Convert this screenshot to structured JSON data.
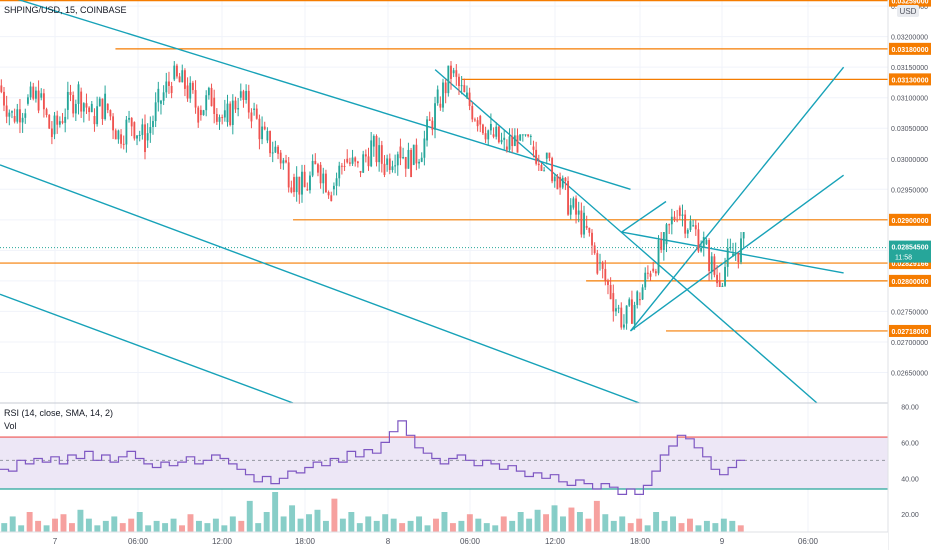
{
  "header": {
    "symbol": "SHPING/USD, 15, COINBASE",
    "currency_badge": "USD"
  },
  "rsi_legend": "RSI (14, close, SMA, 14, 2)",
  "vol_legend": "Vol",
  "colors": {
    "up": "#26a69a",
    "down": "#ef5350",
    "level_line": "#f57c00",
    "trend_line": "#17a2b8",
    "rsi_line": "#7e57c2",
    "rsi_band_fill": "#ede7f6",
    "rsi_upper": "#ef5350",
    "rsi_lower": "#26a69a"
  },
  "chart_data": [
    {
      "type": "candlestick",
      "title": "SHPING/USD, 15, COINBASE",
      "ylim": [
        0.026,
        0.0326
      ],
      "x_tick_labels": [
        "7",
        "06:00",
        "12:00",
        "18:00",
        "8",
        "06:00",
        "12:00",
        "18:00",
        "9",
        "06:00"
      ],
      "y_tick_labels": [
        "0.02650000",
        "0.02700000",
        "0.02750000",
        "0.02800000",
        "0.02850000",
        "0.02900000",
        "0.02950000",
        "0.03000000",
        "0.03050000",
        "0.03100000",
        "0.03150000",
        "0.03200000",
        "0.03250000"
      ],
      "y_ticks": [
        0.0265,
        0.027,
        0.0275,
        0.028,
        0.0285,
        0.029,
        0.0295,
        0.03,
        0.0305,
        0.031,
        0.0315,
        0.032,
        0.0325
      ],
      "price_labels": [
        {
          "text": "0.03259000",
          "value": 0.03259,
          "color": "#f57c00"
        },
        {
          "text": "0.03180000",
          "value": 0.0318,
          "color": "#f57c00"
        },
        {
          "text": "0.03130000",
          "value": 0.0313,
          "color": "#f57c00"
        },
        {
          "text": "0.02900000",
          "value": 0.029,
          "color": "#f57c00"
        },
        {
          "text": "0.02829166",
          "value": 0.02829166,
          "color": "#f57c00"
        },
        {
          "text": "0.02800000",
          "value": 0.028,
          "color": "#f57c00"
        },
        {
          "text": "0.02718000",
          "value": 0.02718,
          "color": "#f57c00"
        }
      ],
      "last_price": {
        "text": "0.02854500",
        "value": 0.028545,
        "countdown": "11:58"
      },
      "horizontal_levels": [
        {
          "value": 0.03259,
          "from_x": 0.0
        },
        {
          "value": 0.0318,
          "from_x": 0.13
        },
        {
          "value": 0.0313,
          "from_x": 0.52
        },
        {
          "value": 0.029,
          "from_x": 0.33
        },
        {
          "value": 0.02829166,
          "from_x": 0.0
        },
        {
          "value": 0.028,
          "from_x": 0.66
        },
        {
          "value": 0.02718,
          "from_x": 0.75
        }
      ],
      "series": [
        {
          "name": "",
          "segments": [
            {
              "start": 0.0312,
              "end": 0.0307,
              "hi": 0.0314,
              "lo": 0.0302
            },
            {
              "start": 0.0307,
              "end": 0.0309,
              "hi": 0.0313,
              "lo": 0.0303
            },
            {
              "start": 0.0309,
              "end": 0.031,
              "hi": 0.0314,
              "lo": 0.0305
            },
            {
              "start": 0.031,
              "end": 0.0304,
              "hi": 0.0312,
              "lo": 0.0301
            },
            {
              "start": 0.0304,
              "end": 0.0308,
              "hi": 0.0313,
              "lo": 0.0301
            },
            {
              "start": 0.0308,
              "end": 0.0311,
              "hi": 0.0316,
              "lo": 0.0305
            },
            {
              "start": 0.0311,
              "end": 0.0307,
              "hi": 0.0315,
              "lo": 0.0304
            },
            {
              "start": 0.0307,
              "end": 0.0309,
              "hi": 0.0312,
              "lo": 0.0304
            },
            {
              "start": 0.0309,
              "end": 0.0304,
              "hi": 0.0311,
              "lo": 0.0301
            },
            {
              "start": 0.0304,
              "end": 0.0306,
              "hi": 0.031,
              "lo": 0.0301
            },
            {
              "start": 0.0306,
              "end": 0.0303,
              "hi": 0.0308,
              "lo": 0.0299
            },
            {
              "start": 0.0303,
              "end": 0.0309,
              "hi": 0.0313,
              "lo": 0.0301
            },
            {
              "start": 0.0309,
              "end": 0.0313,
              "hi": 0.0318,
              "lo": 0.0306
            },
            {
              "start": 0.0313,
              "end": 0.0312,
              "hi": 0.0316,
              "lo": 0.031
            },
            {
              "start": 0.0312,
              "end": 0.0308,
              "hi": 0.0315,
              "lo": 0.0305
            },
            {
              "start": 0.0308,
              "end": 0.031,
              "hi": 0.0313,
              "lo": 0.0306
            },
            {
              "start": 0.031,
              "end": 0.0306,
              "hi": 0.0312,
              "lo": 0.0303
            },
            {
              "start": 0.0306,
              "end": 0.031,
              "hi": 0.0313,
              "lo": 0.0304
            },
            {
              "start": 0.031,
              "end": 0.0308,
              "hi": 0.0313,
              "lo": 0.0305
            },
            {
              "start": 0.0308,
              "end": 0.0303,
              "hi": 0.031,
              "lo": 0.03
            },
            {
              "start": 0.0303,
              "end": 0.0301,
              "hi": 0.0306,
              "lo": 0.0298
            },
            {
              "start": 0.0301,
              "end": 0.0297,
              "hi": 0.0303,
              "lo": 0.0293
            },
            {
              "start": 0.0297,
              "end": 0.0295,
              "hi": 0.0299,
              "lo": 0.0292
            },
            {
              "start": 0.0295,
              "end": 0.0299,
              "hi": 0.0301,
              "lo": 0.0293
            },
            {
              "start": 0.0299,
              "end": 0.0295,
              "hi": 0.0301,
              "lo": 0.0293
            },
            {
              "start": 0.0295,
              "end": 0.03,
              "hi": 0.0304,
              "lo": 0.0294
            },
            {
              "start": 0.03,
              "end": 0.0298,
              "hi": 0.0302,
              "lo": 0.0296
            },
            {
              "start": 0.0298,
              "end": 0.0302,
              "hi": 0.0305,
              "lo": 0.0297
            },
            {
              "start": 0.0302,
              "end": 0.0299,
              "hi": 0.0304,
              "lo": 0.0297
            },
            {
              "start": 0.0299,
              "end": 0.0302,
              "hi": 0.0304,
              "lo": 0.0297
            },
            {
              "start": 0.0302,
              "end": 0.0299,
              "hi": 0.0304,
              "lo": 0.0297
            },
            {
              "start": 0.0299,
              "end": 0.0303,
              "hi": 0.0305,
              "lo": 0.0297
            },
            {
              "start": 0.0303,
              "end": 0.0309,
              "hi": 0.0312,
              "lo": 0.0302
            },
            {
              "start": 0.0309,
              "end": 0.0314,
              "hi": 0.0316,
              "lo": 0.0307
            },
            {
              "start": 0.0314,
              "end": 0.031,
              "hi": 0.0316,
              "lo": 0.0307
            },
            {
              "start": 0.031,
              "end": 0.0307,
              "hi": 0.0312,
              "lo": 0.0304
            },
            {
              "start": 0.0307,
              "end": 0.0304,
              "hi": 0.0309,
              "lo": 0.0302
            },
            {
              "start": 0.0304,
              "end": 0.0302,
              "hi": 0.0306,
              "lo": 0.0301
            },
            {
              "start": 0.0302,
              "end": 0.0303,
              "hi": 0.0305,
              "lo": 0.0301
            },
            {
              "start": 0.0303,
              "end": 0.0302,
              "hi": 0.0304,
              "lo": 0.0301
            },
            {
              "start": 0.0302,
              "end": 0.03,
              "hi": 0.0303,
              "lo": 0.0298
            },
            {
              "start": 0.03,
              "end": 0.0297,
              "hi": 0.0301,
              "lo": 0.0295
            },
            {
              "start": 0.0297,
              "end": 0.0292,
              "hi": 0.0298,
              "lo": 0.029
            },
            {
              "start": 0.0292,
              "end": 0.0289,
              "hi": 0.0294,
              "lo": 0.0287
            },
            {
              "start": 0.0289,
              "end": 0.0283,
              "hi": 0.0291,
              "lo": 0.0281
            },
            {
              "start": 0.0283,
              "end": 0.0278,
              "hi": 0.0285,
              "lo": 0.0277
            },
            {
              "start": 0.0278,
              "end": 0.0273,
              "hi": 0.028,
              "lo": 0.0272
            },
            {
              "start": 0.0273,
              "end": 0.0277,
              "hi": 0.0279,
              "lo": 0.0272
            },
            {
              "start": 0.0277,
              "end": 0.0282,
              "hi": 0.0284,
              "lo": 0.0276
            },
            {
              "start": 0.0282,
              "end": 0.0286,
              "hi": 0.0288,
              "lo": 0.028
            },
            {
              "start": 0.0286,
              "end": 0.0292,
              "hi": 0.0294,
              "lo": 0.0284
            },
            {
              "start": 0.0292,
              "end": 0.0289,
              "hi": 0.0293,
              "lo": 0.0287
            },
            {
              "start": 0.0289,
              "end": 0.0286,
              "hi": 0.029,
              "lo": 0.0284
            },
            {
              "start": 0.0286,
              "end": 0.028,
              "hi": 0.0287,
              "lo": 0.0279
            },
            {
              "start": 0.028,
              "end": 0.0284,
              "hi": 0.0288,
              "lo": 0.0279
            },
            {
              "start": 0.0284,
              "end": 0.0286,
              "hi": 0.0288,
              "lo": 0.0282
            }
          ]
        }
      ],
      "trend_lines": [
        {
          "from": [
            0.0,
            0.0327
          ],
          "to": [
            0.71,
            0.0295
          ]
        },
        {
          "from": [
            0.0,
            0.0299
          ],
          "to": [
            0.72,
            0.026
          ]
        },
        {
          "from": [
            0.0,
            0.02778
          ],
          "to": [
            0.33,
            0.026
          ]
        },
        {
          "from": [
            0.49,
            0.03146
          ],
          "to": [
            0.92,
            0.026
          ]
        },
        {
          "from": [
            0.71,
            0.02718
          ],
          "to": [
            0.95,
            0.0315
          ]
        },
        {
          "from": [
            0.71,
            0.02718
          ],
          "to": [
            0.95,
            0.02973
          ]
        },
        {
          "from": [
            0.7,
            0.0288
          ],
          "to": [
            0.95,
            0.02813
          ]
        },
        {
          "from": [
            0.7,
            0.0288
          ],
          "to": [
            0.75,
            0.0293
          ]
        }
      ]
    },
    {
      "type": "line",
      "title": "RSI (14, close, SMA, 14, 2)",
      "ylim": [
        10,
        82
      ],
      "y_tick_labels": [
        "20.00",
        "40.00",
        "60.00",
        "80.00"
      ],
      "y_ticks": [
        20,
        40,
        60,
        80
      ],
      "bands": {
        "upper": 63,
        "middle": 50,
        "lower": 34
      },
      "series": [
        {
          "name": "",
          "values": [
            45,
            44,
            50,
            48,
            51,
            49,
            52,
            48,
            53,
            51,
            55,
            50,
            53,
            49,
            52,
            55,
            51,
            48,
            46,
            49,
            47,
            49,
            52,
            48,
            50,
            53,
            51,
            48,
            45,
            42,
            38,
            41,
            37,
            40,
            44,
            43,
            46,
            49,
            47,
            51,
            49,
            55,
            52,
            56,
            54,
            60,
            66,
            72,
            64,
            57,
            54,
            51,
            48,
            51,
            53,
            50,
            47,
            50,
            48,
            45,
            47,
            44,
            41,
            43,
            40,
            42,
            38,
            36,
            39,
            37,
            34,
            37,
            35,
            31,
            34,
            31,
            36,
            44,
            53,
            58,
            64,
            62,
            57,
            52,
            45,
            42,
            46,
            50
          ]
        }
      ]
    },
    {
      "type": "bar",
      "title": "Vol",
      "series": [
        {
          "name": "",
          "values": [
            4,
            7,
            3,
            9,
            5,
            3,
            6,
            8,
            4,
            10,
            6,
            3,
            5,
            7,
            4,
            6,
            9,
            3,
            5,
            4,
            6,
            3,
            8,
            5,
            4,
            6,
            3,
            7,
            5,
            14,
            4,
            9,
            18,
            7,
            12,
            6,
            8,
            10,
            5,
            15,
            6,
            9,
            4,
            7,
            5,
            8,
            6,
            4,
            5,
            7,
            3,
            6,
            9,
            4,
            5,
            8,
            6,
            4,
            3,
            7,
            5,
            9,
            6,
            10,
            8,
            12,
            7,
            11,
            9,
            6,
            14,
            8,
            5,
            7,
            4,
            6,
            3,
            9,
            5,
            7,
            4,
            6,
            3,
            5,
            4,
            6,
            5,
            3
          ]
        }
      ]
    }
  ]
}
